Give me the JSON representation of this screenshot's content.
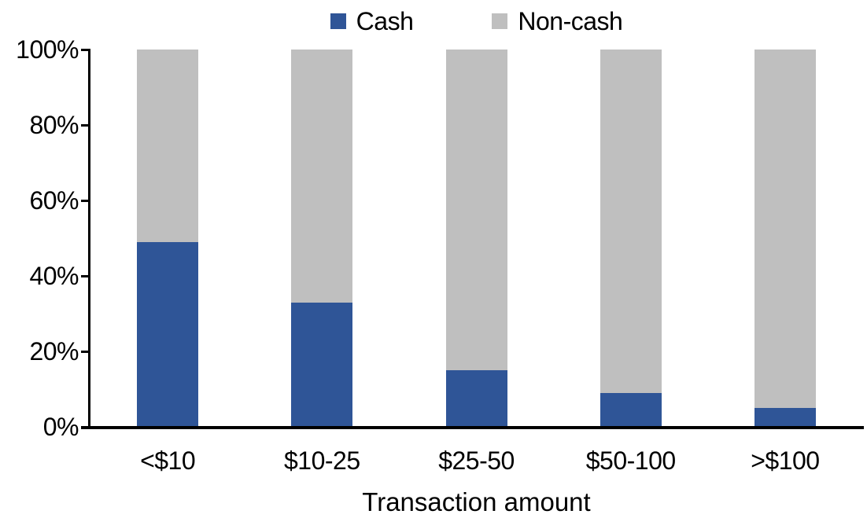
{
  "chart_data": {
    "type": "bar",
    "stacked": true,
    "percent_stacked": true,
    "title": "",
    "xlabel": "Transaction amount",
    "ylabel": "",
    "categories": [
      "<$10",
      "$10-25",
      "$25-50",
      "$50-100",
      ">$100"
    ],
    "series": [
      {
        "name": "Cash",
        "color": "#2F5597",
        "values": [
          49,
          33,
          15,
          9,
          5
        ]
      },
      {
        "name": "Non-cash",
        "color": "#BFBFBF",
        "values": [
          51,
          67,
          85,
          91,
          95
        ]
      }
    ],
    "ylim": [
      0,
      100
    ],
    "y_tick_values": [
      0,
      20,
      40,
      60,
      80,
      100
    ],
    "y_tick_labels": [
      "0%",
      "20%",
      "40%",
      "60%",
      "80%",
      "100%"
    ],
    "grid": false,
    "legend_position": "top",
    "axis_color": "#000000",
    "text_color": "#000000",
    "background_color": "#FFFFFF"
  }
}
